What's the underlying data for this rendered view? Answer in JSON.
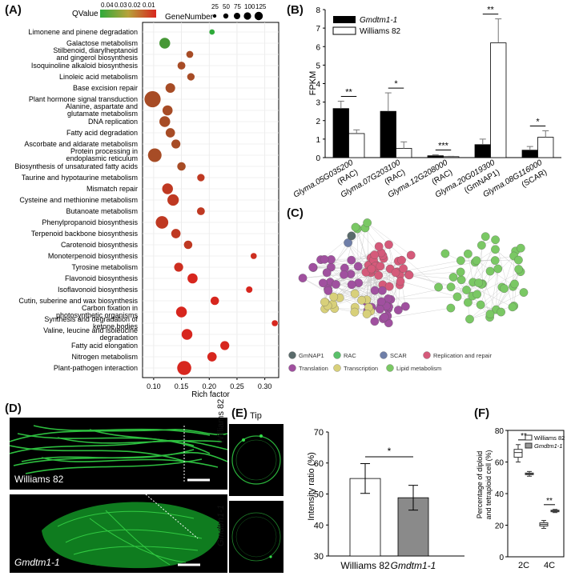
{
  "panels": {
    "a": "(A)",
    "b": "(B)",
    "c": "(C)",
    "d": "(D)",
    "e": "(E)",
    "f": "(F)"
  },
  "colors": {
    "qlow": "#d7261e",
    "qhigh": "#2eaa3a",
    "bar_black": "#000000",
    "bar_gray": "#8a8a8a",
    "micro_green": "#35e04a"
  },
  "panelA": {
    "legend": {
      "qvalue_title": "QValue",
      "qvalue_ticks": [
        "0.04",
        "0.03",
        "0.02",
        "0.01"
      ],
      "gene_title": "GeneNumber",
      "gene_ticks": [
        "25",
        "50",
        "75",
        "100",
        "125"
      ]
    },
    "xlabel": "Rich factor"
  },
  "panelB": {
    "legend": [
      "Gmdtm1-1",
      "Williams 82"
    ]
  },
  "panelC": {
    "legend": [
      "GmNAP1",
      "RAC",
      "SCAR",
      "Replication and repair",
      "Translation",
      "Transcription",
      "Lipid metabolism"
    ],
    "legend_colors": [
      "#5a6b6b",
      "#5ac06a",
      "#6f7fa8",
      "#d55a7a",
      "#a0509f",
      "#d8d07a",
      "#7ac864"
    ]
  },
  "panelD": {
    "top_label": "Williams 82",
    "bottom_label": "Gmdtm1-1"
  },
  "panelE": {
    "tip_label": "Tip",
    "row_labels": [
      "Williams 82",
      "Gmdtm1-1"
    ],
    "sig": "*"
  },
  "panelF": {
    "legend": [
      "Williams 82",
      "Gmdtm1-1"
    ],
    "sig": [
      "**",
      "**"
    ]
  },
  "chart_data": [
    {
      "type": "scatter",
      "panel": "A",
      "xlabel": "Rich factor",
      "ylabel": "",
      "xlim": [
        0.08,
        0.325
      ],
      "xticks": [
        0.1,
        0.15,
        0.2,
        0.25,
        0.3
      ],
      "categories": [
        "Limonene and pinene degradation",
        "Galactose metabolism",
        "Stilbenoid, diarylheptanoid and gingerol biosynthesis",
        "Isoquinoline alkaloid biosynthesis",
        "Linoleic acid metabolism",
        "Base excision repair",
        "Plant hormone signal transduction",
        "Alanine, aspartate and glutamate metabolism",
        "DNA replication",
        "Fatty acid degradation",
        "Ascorbate and aldarate metabolism",
        "Protein processing in endoplasmic reticulum",
        "Biosynthesis of unsaturated fatty acids",
        "Taurine and hypotaurine metabolism",
        "Mismatch repair",
        "Cysteine and methionine metabolism",
        "Butanoate metabolism",
        "Phenylpropanoid biosynthesis",
        "Terpenoid backbone biosynthesis",
        "Carotenoid biosynthesis",
        "Monoterpenoid biosynthesis",
        "Tyrosine metabolism",
        "Flavonoid biosynthesis",
        "Isoflavonoid biosynthesis",
        "Cutin, suberine and wax biosynthesis",
        "Carbon fixation in photosynthetic organisms",
        "Synthesis and degradation of ketone bodies",
        "Valine, leucine and isoleucine degradation",
        "Fatty acid elongation",
        "Nitrogen metabolism",
        "Plant-pathogen interaction"
      ],
      "x": [
        0.205,
        0.12,
        0.165,
        0.15,
        0.167,
        0.13,
        0.098,
        0.125,
        0.12,
        0.13,
        0.14,
        0.102,
        0.15,
        0.185,
        0.125,
        0.135,
        0.185,
        0.115,
        0.14,
        0.162,
        0.28,
        0.145,
        0.17,
        0.272,
        0.21,
        0.15,
        0.318,
        0.16,
        0.228,
        0.205,
        0.155
      ],
      "gene_number": [
        3,
        30,
        8,
        12,
        10,
        22,
        85,
        25,
        30,
        20,
        18,
        55,
        15,
        10,
        30,
        35,
        12,
        45,
        20,
        15,
        5,
        18,
        25,
        6,
        15,
        30,
        5,
        30,
        18,
        20,
        60
      ],
      "qvalue": [
        0.045,
        0.04,
        0.02,
        0.02,
        0.02,
        0.02,
        0.02,
        0.02,
        0.02,
        0.02,
        0.02,
        0.02,
        0.02,
        0.015,
        0.015,
        0.015,
        0.015,
        0.015,
        0.015,
        0.015,
        0.012,
        0.012,
        0.01,
        0.01,
        0.01,
        0.01,
        0.01,
        0.01,
        0.01,
        0.01,
        0.008
      ]
    },
    {
      "type": "bar",
      "panel": "B",
      "ylabel": "FPKM",
      "ylim": [
        0,
        8
      ],
      "yticks": [
        0,
        1,
        2,
        3,
        4,
        5,
        6,
        7,
        8
      ],
      "categories": [
        "Glyma.05G035200 (RAC)",
        "Glyma.07G203100 (RAC)",
        "Glyma.12G208000 (RAC)",
        "Glyma.20G019300 (GmNAP1)",
        "Glyma.08G116000 (SCAR)"
      ],
      "series": [
        {
          "name": "Gmdtm1-1",
          "values": [
            2.65,
            2.5,
            0.1,
            0.7,
            0.4
          ],
          "errors": [
            0.4,
            1.0,
            0.05,
            0.3,
            0.2
          ]
        },
        {
          "name": "Williams 82",
          "values": [
            1.3,
            0.5,
            0.05,
            6.2,
            1.1
          ],
          "errors": [
            0.2,
            0.35,
            0.02,
            1.3,
            0.35
          ]
        }
      ],
      "significance": [
        "**",
        "*",
        "***",
        "**",
        "*"
      ]
    },
    {
      "type": "bar",
      "panel": "E",
      "ylabel": "Intensity ratio (%)",
      "ylim": [
        30,
        70
      ],
      "yticks": [
        30,
        40,
        50,
        60,
        70
      ],
      "categories": [
        "Williams 82",
        "Gmdtm1-1"
      ],
      "values": [
        55,
        48.8
      ],
      "errors": [
        4.8,
        4.0
      ]
    },
    {
      "type": "box",
      "panel": "F",
      "ylabel": "Percentage of diploid and tetraploid cell (%)",
      "ylim": [
        0,
        80
      ],
      "yticks": [
        0,
        20,
        40,
        60,
        80
      ],
      "categories": [
        "2C",
        "4C"
      ],
      "series": [
        {
          "name": "Williams 82",
          "boxes": [
            [
              60,
              63,
              66,
              68,
              71
            ],
            [
              18,
              19.5,
              20.5,
              21.5,
              23
            ]
          ]
        },
        {
          "name": "Gmdtm1-1",
          "boxes": [
            [
              51,
              52,
              52.5,
              53,
              54
            ],
            [
              28,
              28.5,
              29,
              29.5,
              30
            ]
          ]
        }
      ]
    }
  ]
}
